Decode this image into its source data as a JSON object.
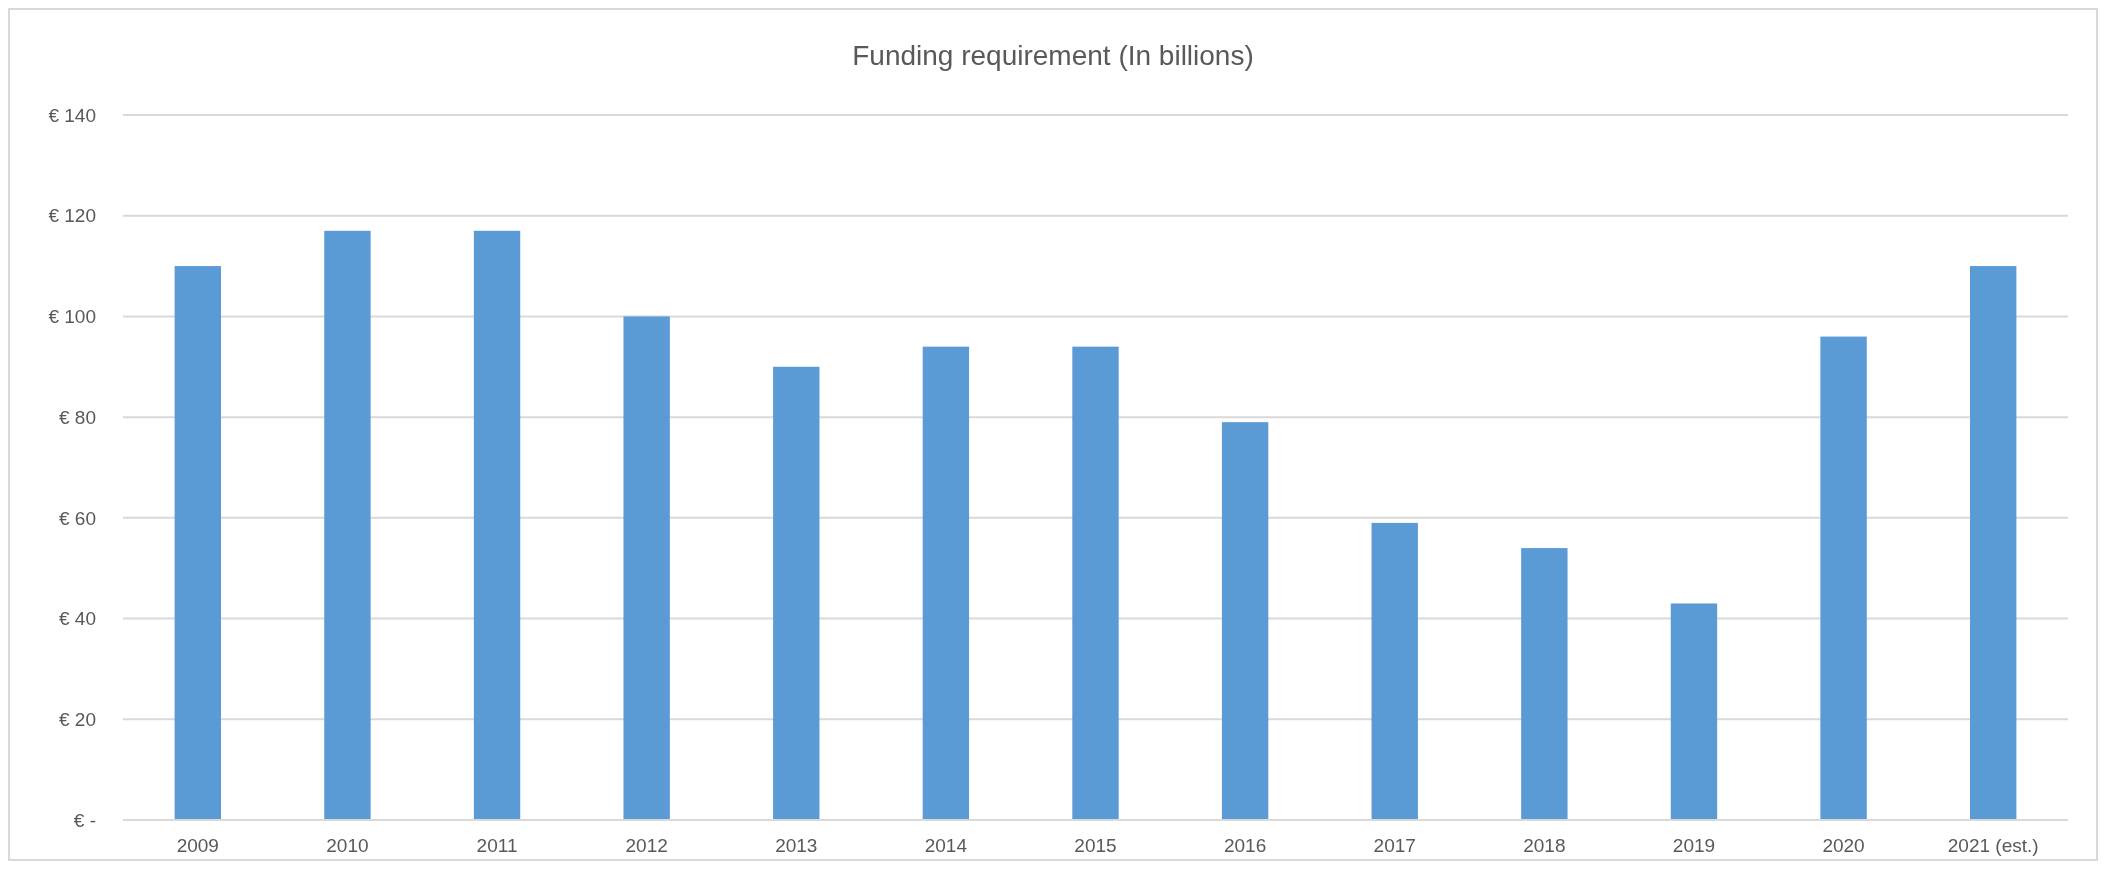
{
  "chart_data": {
    "type": "bar",
    "title": "Funding requirement (In billions)",
    "categories": [
      "2009",
      "2010",
      "2011",
      "2012",
      "2013",
      "2014",
      "2015",
      "2016",
      "2017",
      "2018",
      "2019",
      "2020",
      "2021 (est.)"
    ],
    "values": [
      110,
      117,
      117,
      100,
      90,
      94,
      94,
      79,
      59,
      54,
      43,
      96,
      110
    ],
    "color": "#5b9bd5",
    "ylim": [
      0,
      140
    ],
    "yticks": [
      {
        "value": 0,
        "label": "€ -"
      },
      {
        "value": 20,
        "label": "€ 20"
      },
      {
        "value": 40,
        "label": "€ 40"
      },
      {
        "value": 60,
        "label": "€ 60"
      },
      {
        "value": 80,
        "label": "€ 80"
      },
      {
        "value": 100,
        "label": "€ 100"
      },
      {
        "value": 120,
        "label": "€ 120"
      },
      {
        "value": 140,
        "label": "€ 140"
      }
    ],
    "grid": "y"
  }
}
